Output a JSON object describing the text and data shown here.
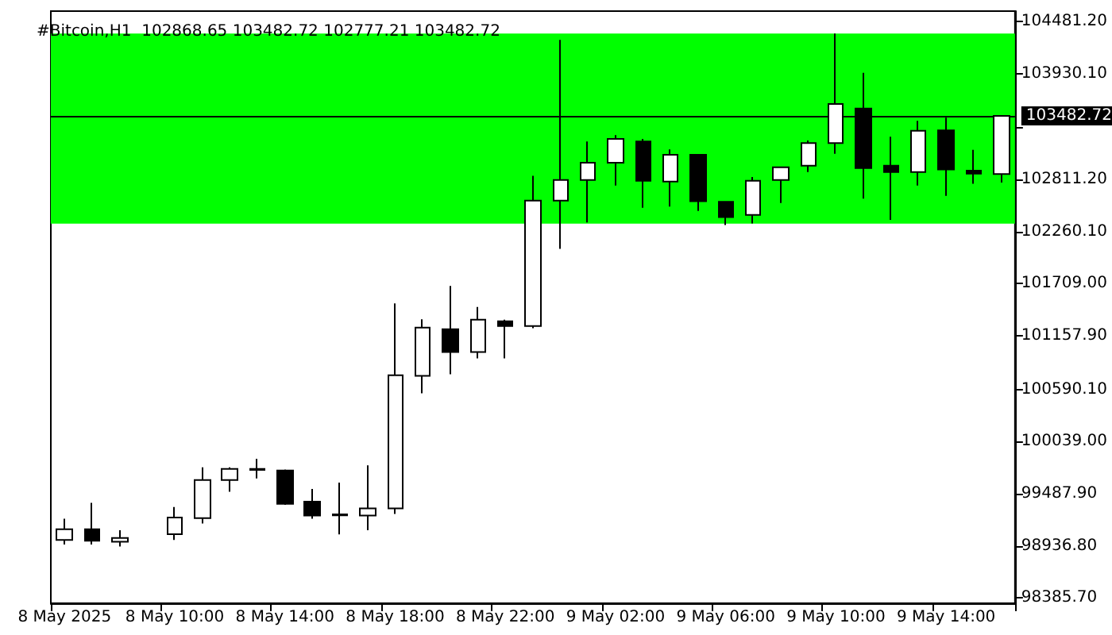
{
  "chart_data": {
    "type": "candlestick",
    "title": "#Bitcoin,H1  102868.65 103482.72 102777.21 103482.72",
    "categories": [
      "8 May 2025",
      null,
      null,
      null,
      "8 May 10:00",
      null,
      null,
      null,
      "8 May 14:00",
      null,
      null,
      null,
      "8 May 18:00",
      null,
      null,
      null,
      "8 May 22:00",
      null,
      null,
      null,
      "9 May 02:00",
      null,
      null,
      null,
      "9 May 06:00",
      null,
      null,
      null,
      "9 May 10:00",
      null,
      null,
      null,
      "9 May 14:00",
      null,
      null
    ],
    "ohlc": [
      [
        99000,
        99224,
        98950,
        99113
      ],
      [
        99113,
        99392,
        98950,
        98990
      ],
      [
        98980,
        99102,
        98930,
        99020
      ],
      null,
      [
        99060,
        99348,
        99000,
        99236
      ],
      [
        99231,
        99768,
        99174,
        99633
      ],
      [
        99633,
        99768,
        99510,
        99751
      ],
      [
        99751,
        99857,
        99650,
        99740
      ],
      [
        99734,
        99745,
        99370,
        99382
      ],
      [
        99404,
        99538,
        99224,
        99258
      ],
      [
        99270,
        99605,
        99057,
        99260
      ],
      [
        99258,
        99789,
        99102,
        99332
      ],
      [
        99332,
        101500,
        99275,
        100741
      ],
      [
        100734,
        101333,
        100549,
        101244
      ],
      [
        101227,
        101685,
        100751,
        100986
      ],
      [
        100986,
        101462,
        100918,
        101328
      ],
      [
        101311,
        101328,
        100918,
        101261
      ],
      [
        101261,
        102848,
        101237,
        102586
      ],
      [
        102586,
        104285,
        102076,
        102804
      ],
      [
        102804,
        103211,
        102356,
        102988
      ],
      [
        102988,
        103279,
        102747,
        103240
      ],
      [
        103211,
        103240,
        102512,
        102797
      ],
      [
        102787,
        103127,
        102524,
        103072
      ],
      [
        103072,
        103072,
        102478,
        102580
      ],
      [
        102574,
        102574,
        102328,
        102412
      ],
      [
        102435,
        102837,
        102345,
        102797
      ],
      [
        102804,
        102938,
        102562,
        102938
      ],
      [
        102955,
        103223,
        102888,
        103195
      ],
      [
        103195,
        104352,
        103082,
        103609
      ],
      [
        103559,
        103938,
        102608,
        102931
      ],
      [
        102955,
        103262,
        102384,
        102888
      ],
      [
        102888,
        103429,
        102747,
        103324
      ],
      [
        103329,
        103463,
        102636,
        102915
      ],
      [
        102904,
        103123,
        102764,
        102871
      ],
      [
        102868.65,
        103482.72,
        102777.21,
        103482.72
      ]
    ],
    "ylim": [
      98330,
      104590
    ],
    "yticks": [
      {
        "value": 98385.7,
        "label": "98385.70"
      },
      {
        "value": 98936.8,
        "label": "98936.80"
      },
      {
        "value": 99487.9,
        "label": "99487.90"
      },
      {
        "value": 100039,
        "label": "100039.00"
      },
      {
        "value": 100590.1,
        "label": "100590.10"
      },
      {
        "value": 101157.9,
        "label": "101157.90"
      },
      {
        "value": 101709,
        "label": "101709.00"
      },
      {
        "value": 102260.1,
        "label": "102260.10"
      },
      {
        "value": 102811.2,
        "label": "102811.20"
      },
      {
        "value": 103362.3,
        "label": null
      },
      {
        "value": 103930.1,
        "label": "103930.10"
      },
      {
        "value": 104481.2,
        "label": "104481.20"
      }
    ],
    "ref_lines": [
      {
        "axis": "y",
        "value": 103482.72,
        "label": "103482.72",
        "color": "#000000"
      }
    ],
    "bands": [
      {
        "axis": "y",
        "from": 102344,
        "to": 104352,
        "label": null,
        "color": "#00ff00"
      }
    ],
    "grid": false
  }
}
